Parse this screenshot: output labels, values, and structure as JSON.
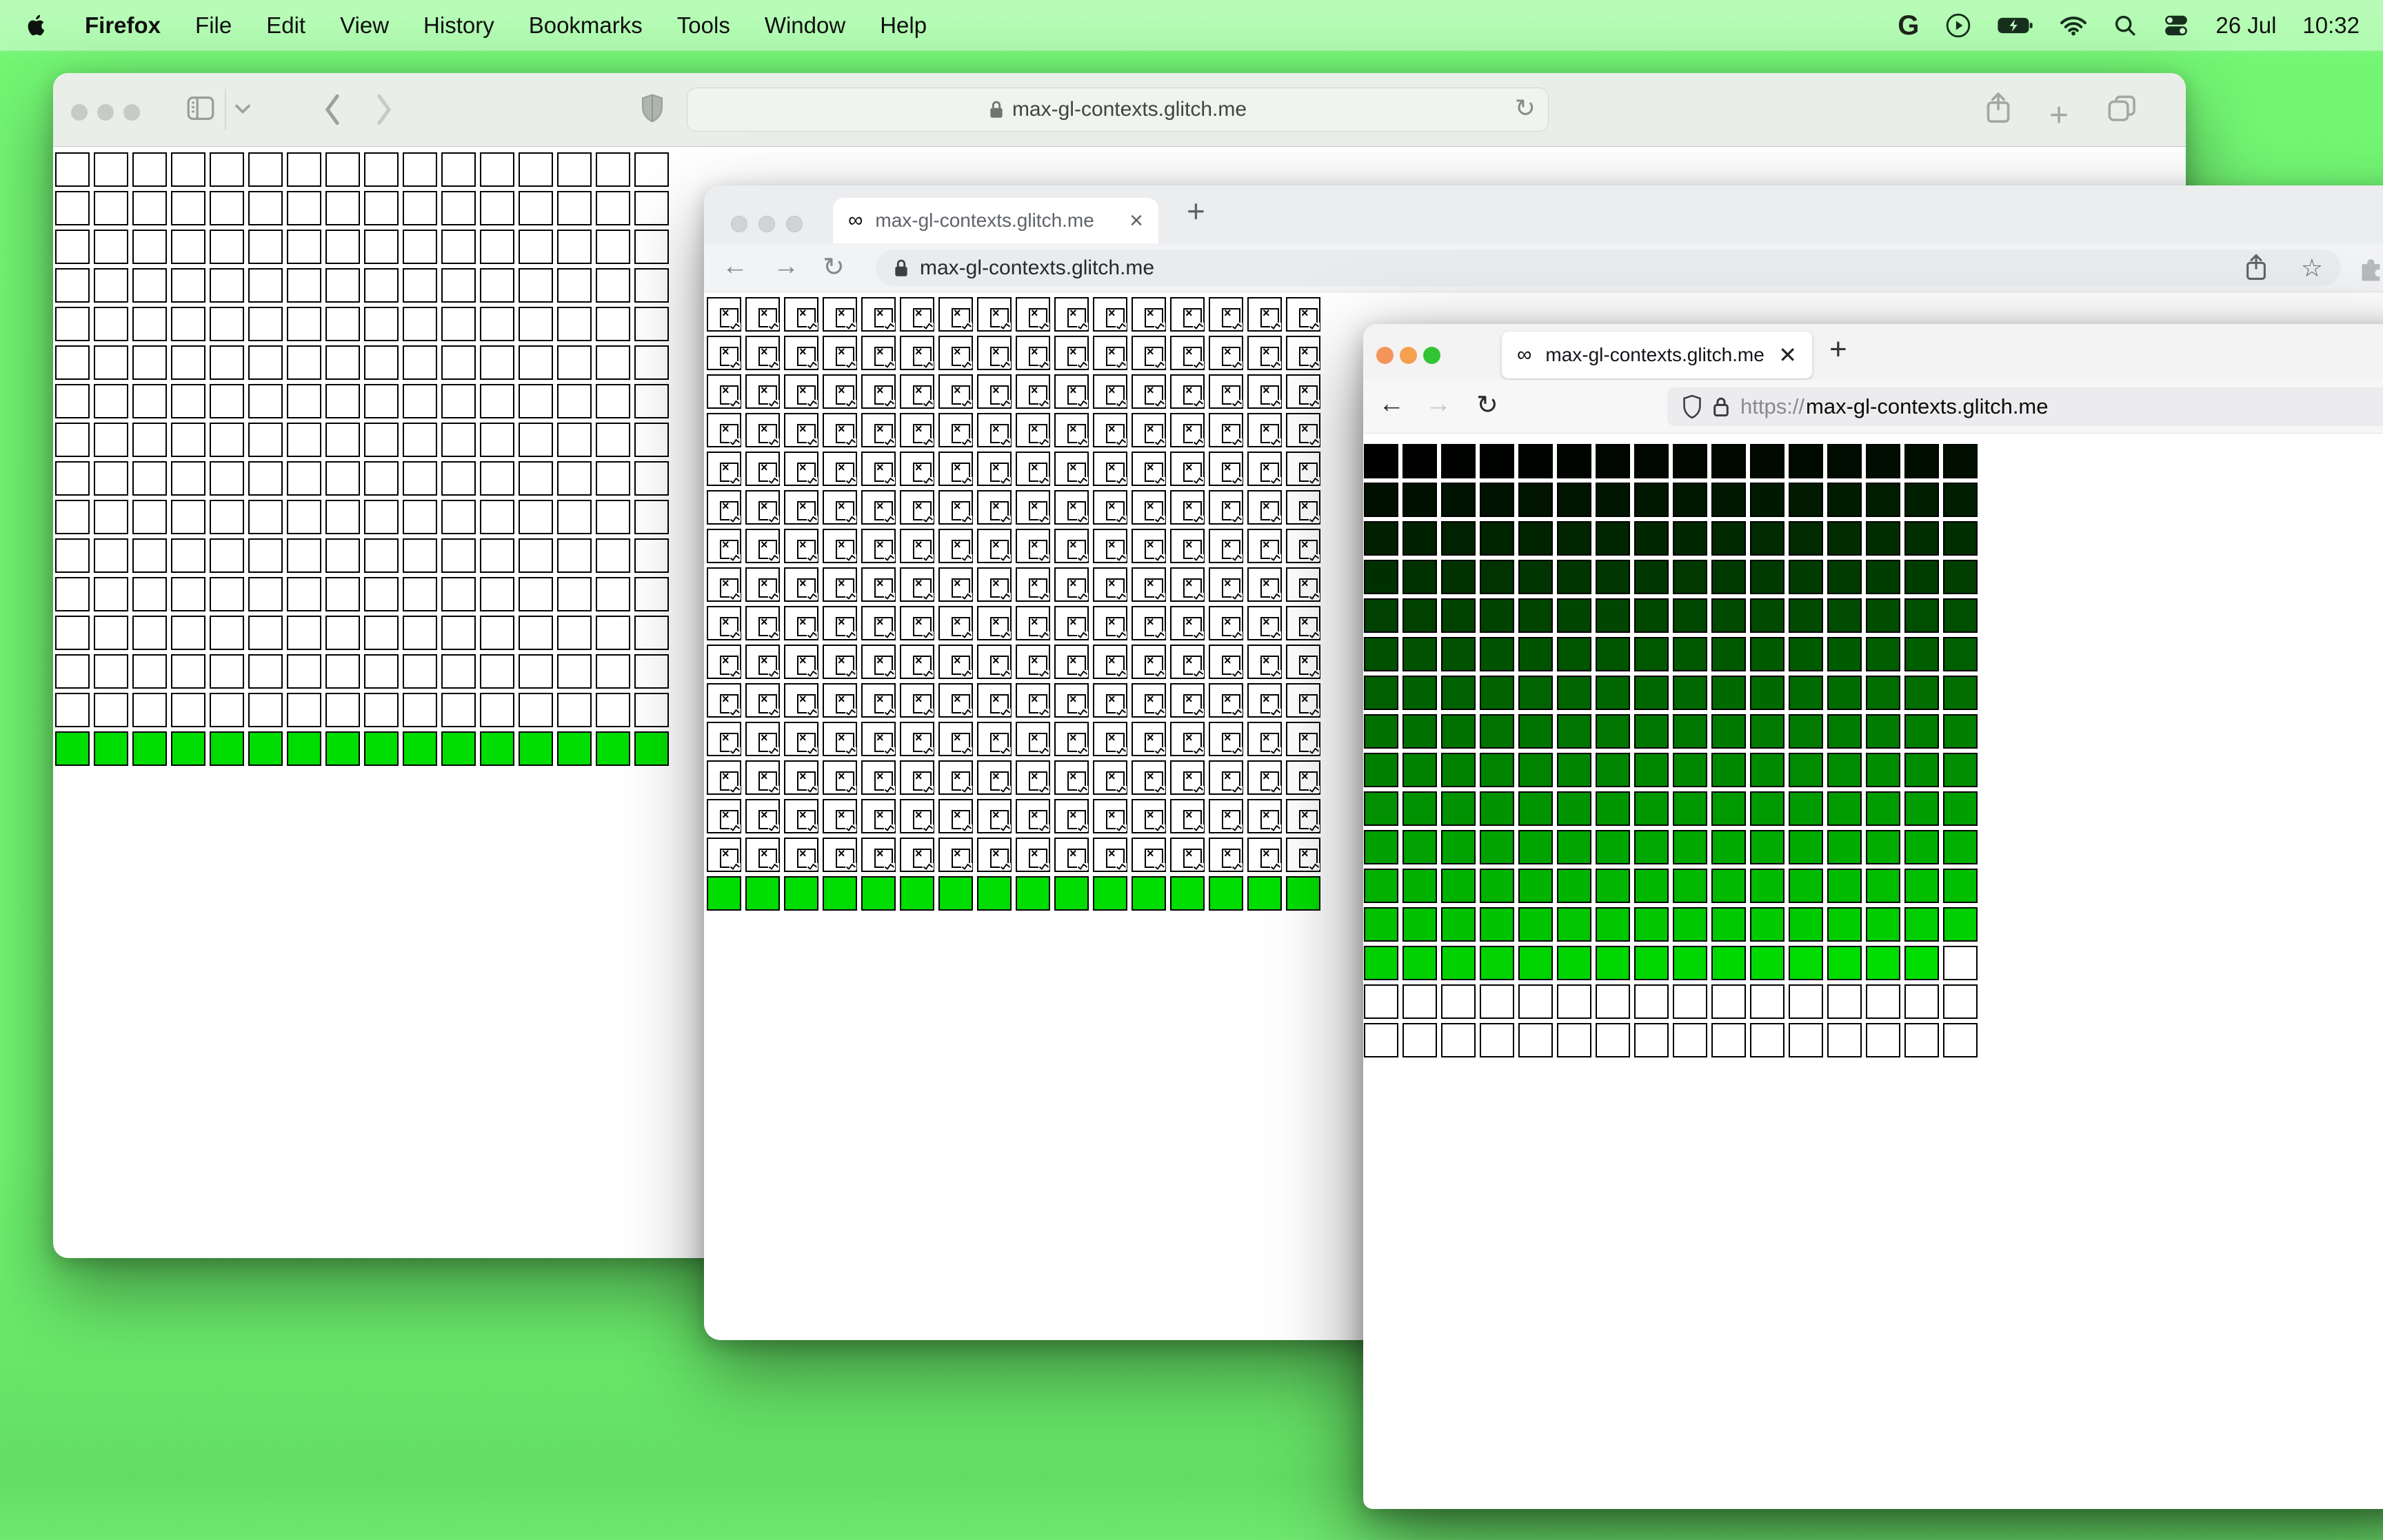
{
  "menu_bar": {
    "app_name": "Firefox",
    "items": [
      "File",
      "Edit",
      "View",
      "History",
      "Bookmarks",
      "Tools",
      "Window",
      "Help"
    ],
    "status_icons": [
      "google-g-icon",
      "play-circle-icon",
      "battery-charging-icon",
      "wifi-icon",
      "search-icon",
      "control-center-icon"
    ],
    "date": "26 Jul",
    "time": "10:32",
    "google_glyph": "G"
  },
  "safari": {
    "url": "max-gl-contexts.glitch.me",
    "reload_glyph": "↻",
    "grid": {
      "type": "heatmap",
      "cols": 16,
      "rows": 16,
      "white_rows": 15,
      "green_rows": 1,
      "green_color": "#00dd00",
      "cell_fill": "#ffffff",
      "cell_border": "#000000",
      "description": "16x16 grid of empty white black-bordered squares; bottom row solid bright green"
    }
  },
  "chrome": {
    "tab_title": "max-gl-contexts.glitch.me",
    "url": "max-gl-contexts.glitch.me",
    "favicon_glyph": "∞",
    "close_glyph": "×",
    "newtab_glyph": "+",
    "back_glyph": "←",
    "forward_glyph": "→",
    "reload_glyph": "↻",
    "star_glyph": "☆",
    "grid": {
      "type": "heatmap",
      "cols": 16,
      "rows": 16,
      "broken_image_rows": 15,
      "green_rows": 1,
      "green_color": "#00dd00",
      "cell_fill": "#ffffff",
      "cell_border": "#000000",
      "broken_glyph": "×",
      "description": "16x16 grid; 15 rows of broken-image placeholder squares, bottom row solid bright green"
    }
  },
  "firefox": {
    "tab_title": "max-gl-contexts.glitch.me/",
    "url_scheme": "https://",
    "url_host": "max-gl-contexts.glitch.me",
    "favicon_glyph": "∞",
    "close_glyph": "✕",
    "newtab_glyph": "+",
    "back_glyph": "←",
    "forward_glyph": "→",
    "reload_glyph": "↻",
    "traffic_lights": [
      "#f5955c",
      "#f5a04f",
      "#33c433"
    ],
    "grid": {
      "type": "heatmap",
      "cols": 16,
      "rows": 16,
      "colored_cells": 223,
      "ramp": "cell i (row-major) filled rgb(0, i, 0) from black to bright green",
      "ramp_max_green": 222,
      "white_cells": 33,
      "cell_border": "#000000",
      "description": "green brightness ramp over 223 cells, remaining 33 cells white"
    }
  }
}
